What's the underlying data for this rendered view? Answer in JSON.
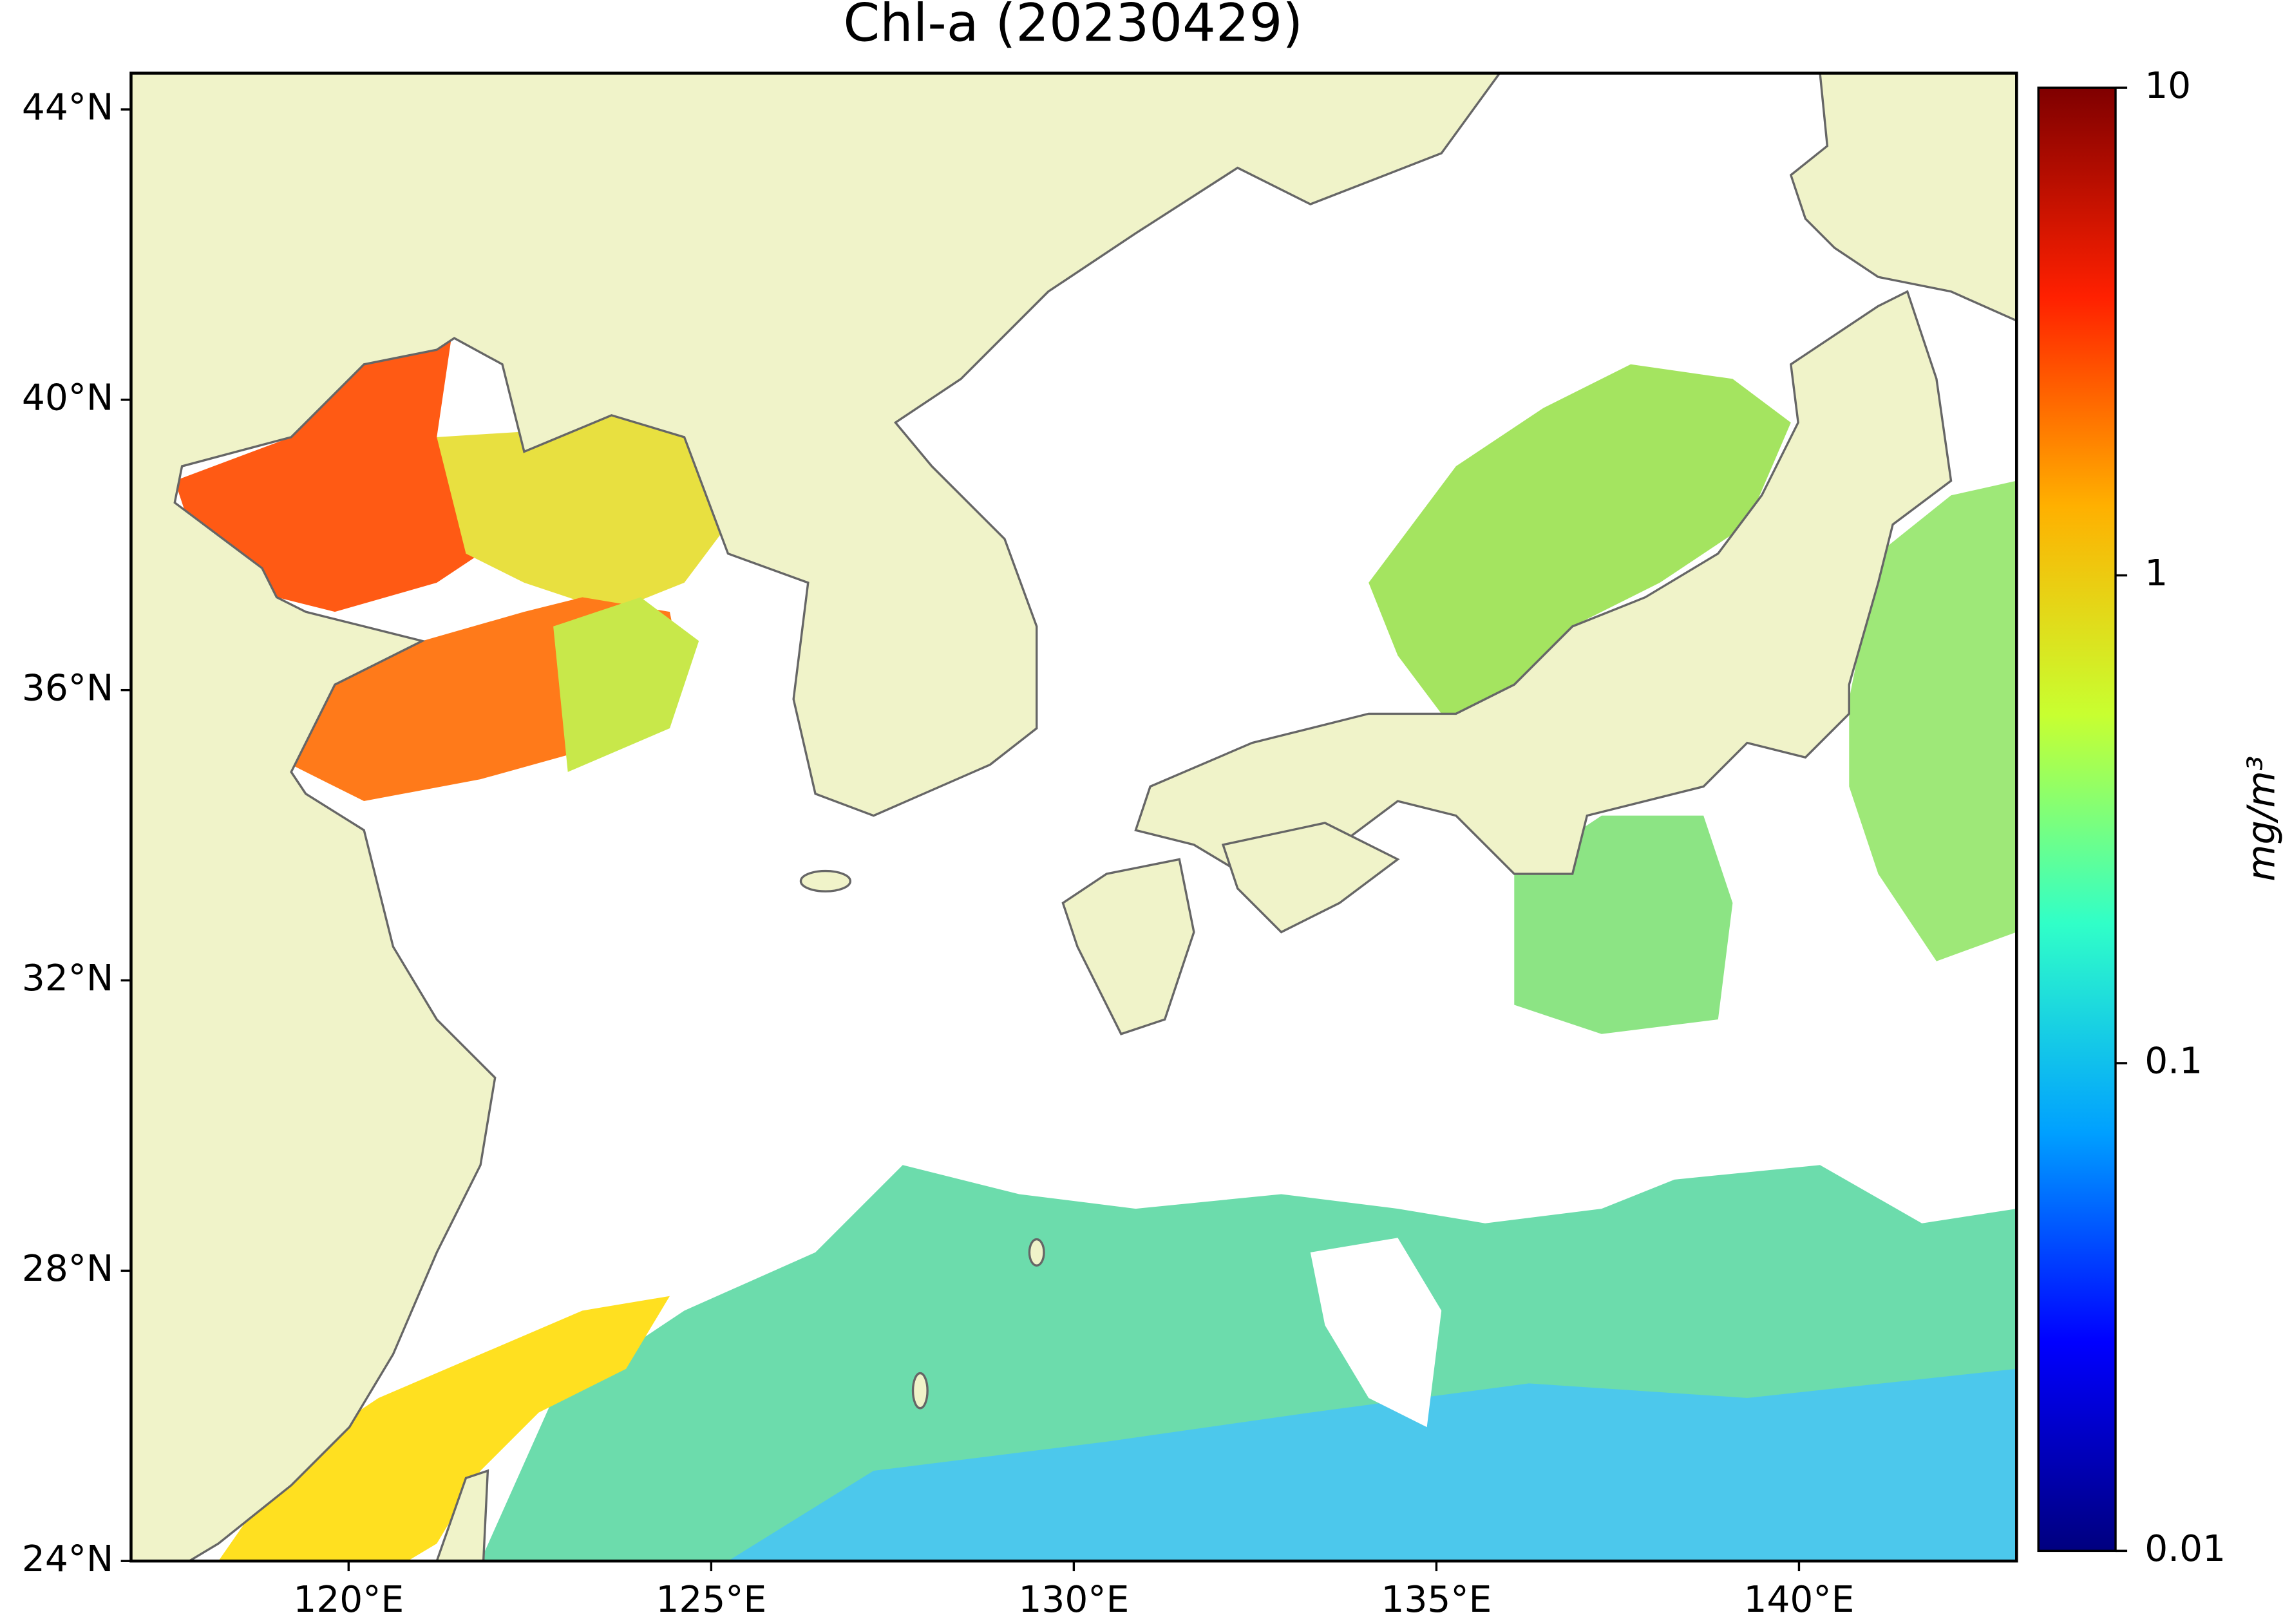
{
  "chart_data": {
    "type": "map",
    "title": "Chl-a (20230429)",
    "xlim": [
      117,
      143
    ],
    "ylim": [
      24,
      44.5
    ],
    "xticks": [
      {
        "value": 120,
        "label": "120°E"
      },
      {
        "value": 125,
        "label": "125°E"
      },
      {
        "value": 130,
        "label": "130°E"
      },
      {
        "value": 135,
        "label": "135°E"
      },
      {
        "value": 140,
        "label": "140°E"
      }
    ],
    "yticks": [
      {
        "value": 24,
        "label": "24°N"
      },
      {
        "value": 28,
        "label": "28°N"
      },
      {
        "value": 32,
        "label": "32°N"
      },
      {
        "value": 36,
        "label": "36°N"
      },
      {
        "value": 40,
        "label": "40°N"
      },
      {
        "value": 44,
        "label": "44°N"
      }
    ],
    "colorbar": {
      "label": "mg/m³",
      "lim": [
        0.01,
        10
      ],
      "ticks": [
        0.01,
        0.1,
        1,
        10
      ],
      "log": true,
      "colormap": [
        "#00007f",
        "#0000ff",
        "#00a0ff",
        "#30ffc8",
        "#c8ff30",
        "#ffb000",
        "#ff2000",
        "#7f0000"
      ]
    }
  }
}
